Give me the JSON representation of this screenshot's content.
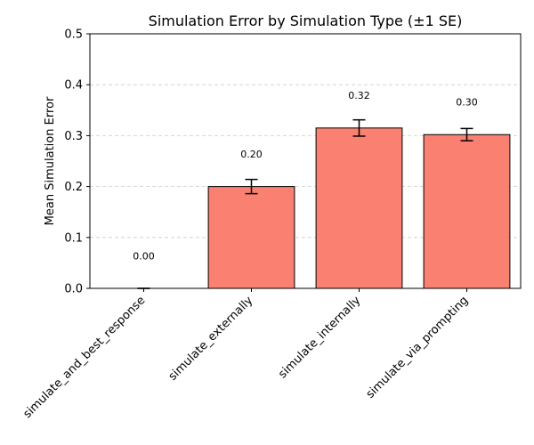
{
  "chart_data": {
    "type": "bar",
    "title": "Simulation Error by Simulation Type (±1 SE)",
    "xlabel": "",
    "ylabel": "Mean Simulation Error",
    "categories": [
      "simulate_and_best_response",
      "simulate_externally",
      "simulate_internally",
      "simulate_via_prompting"
    ],
    "values": [
      0.0,
      0.2,
      0.315,
      0.302
    ],
    "errors": [
      0.0,
      0.014,
      0.016,
      0.012
    ],
    "data_labels": [
      "0.00",
      "0.20",
      "0.32",
      "0.30"
    ],
    "ylim": [
      0,
      0.5
    ],
    "yticks": [
      "0.0",
      "0.1",
      "0.2",
      "0.3",
      "0.4",
      "0.5"
    ],
    "grid": "y-dashed",
    "colors": {
      "bar": "#fa8072",
      "edge": "#000000",
      "grid": "#cccccc"
    }
  }
}
